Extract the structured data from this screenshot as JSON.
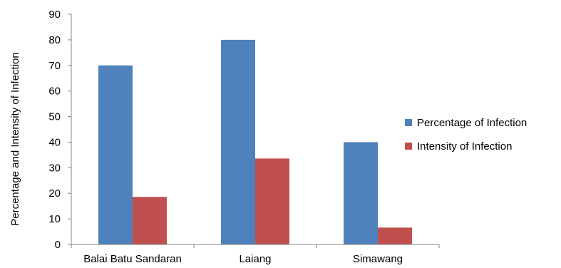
{
  "chart_data": {
    "type": "bar",
    "title": "",
    "xlabel": "",
    "ylabel": "Percentage and Intensity of Infection",
    "categories": [
      "Balai Batu Sandaran",
      "Laiang",
      "Simawang"
    ],
    "series": [
      {
        "name": "Percentage of Infection",
        "values": [
          70,
          80,
          40
        ],
        "color": "#4F81BD"
      },
      {
        "name": "Intensity of Infection",
        "values": [
          18.6,
          33.6,
          6.6
        ],
        "color": "#C0504D"
      }
    ],
    "ylim": [
      0,
      90
    ],
    "yticks": [
      0,
      10,
      20,
      30,
      40,
      50,
      60,
      70,
      80,
      90
    ],
    "grid": false,
    "legend_position": "right"
  }
}
